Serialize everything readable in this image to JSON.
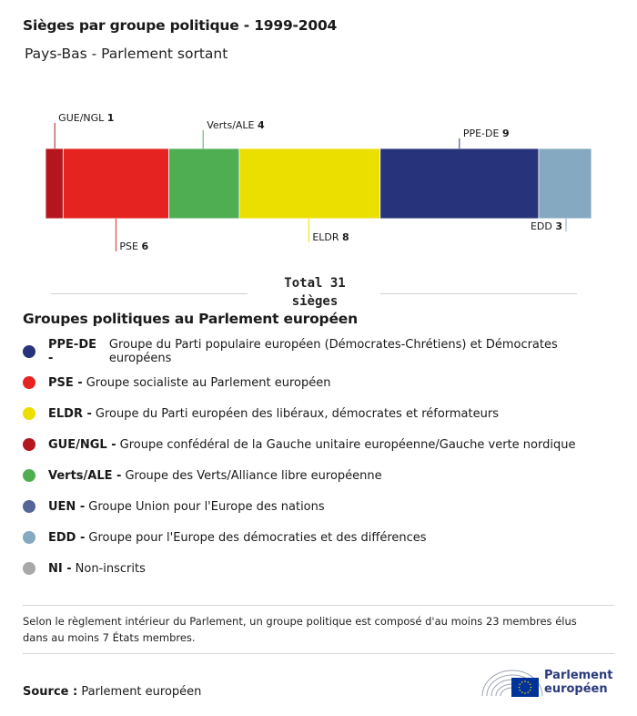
{
  "title": "Sièges par groupe politique - 1999-2004",
  "subtitle": "Pays-Bas - Parlement sortant",
  "total": {
    "line1": "Total 31",
    "line2": "sièges"
  },
  "chart_data": {
    "type": "bar",
    "stacked": true,
    "orientation": "horizontal",
    "total_seats": 31,
    "segments": [
      {
        "label": "GUE/NGL",
        "value": 1,
        "color": "#b5161d",
        "label_position": "top"
      },
      {
        "label": "PSE",
        "value": 6,
        "color": "#e52421",
        "label_position": "bottom"
      },
      {
        "label": "Verts/ALE",
        "value": 4,
        "color": "#4fae52",
        "label_position": "top"
      },
      {
        "label": "ELDR",
        "value": 8,
        "color": "#ebdf00",
        "label_position": "bottom"
      },
      {
        "label": "PPE-DE",
        "value": 9,
        "color": "#27347b",
        "label_position": "top"
      },
      {
        "label": "EDD",
        "value": 3,
        "color": "#84a9c0",
        "label_position": "bottom"
      }
    ]
  },
  "legend": {
    "title": "Groupes politiques au Parlement européen",
    "items": [
      {
        "abbr": "PPE-DE -",
        "text": "Groupe du Parti populaire européen (Démocrates-Chrétiens) et Démocrates européens",
        "color": "#27347b"
      },
      {
        "abbr": "PSE -",
        "text": "Groupe socialiste au Parlement européen",
        "color": "#e52421"
      },
      {
        "abbr": "ELDR -",
        "text": "Groupe du Parti européen des libéraux, démocrates et réformateurs",
        "color": "#ebdf00"
      },
      {
        "abbr": "GUE/NGL -",
        "text": "Groupe confédéral de la Gauche unitaire européenne/Gauche verte nordique",
        "color": "#b5161d"
      },
      {
        "abbr": "Verts/ALE -",
        "text": "Groupe des Verts/Alliance libre européenne",
        "color": "#4fae52"
      },
      {
        "abbr": "UEN -",
        "text": "Groupe Union pour l'Europe des nations",
        "color": "#556597"
      },
      {
        "abbr": "EDD -",
        "text": "Groupe pour l'Europe des démocraties et des différences",
        "color": "#84a9c0"
      },
      {
        "abbr": "NI -",
        "text": "Non-inscrits",
        "color": "#a8a8a8"
      }
    ]
  },
  "note": "Selon le règlement intérieur du Parlement, un groupe politique est composé d'au moins 23 membres élus dans au moins 7 États membres.",
  "source": {
    "label": "Source :",
    "value": "Parlement européen"
  },
  "logo": {
    "line1": "Parlement",
    "line2": "européen",
    "flag_color": "#003399",
    "star_color": "#ffcc00"
  }
}
